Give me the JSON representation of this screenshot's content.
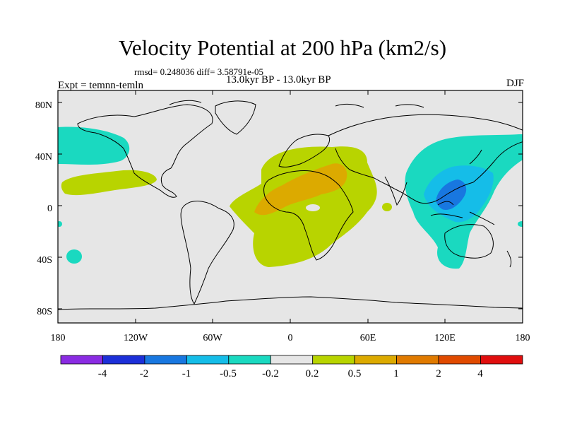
{
  "title": "Velocity Potential at 200 hPa (km2/s)",
  "stats": "rmsd= 0.248036 diff= 3.58791e-05",
  "period": "13.0kyr BP - 13.0kyr BP",
  "experiment": "Expt = temnn-temln",
  "season": "DJF",
  "x_ticks": [
    "180",
    "120W",
    "60W",
    "0",
    "60E",
    "120E",
    "180"
  ],
  "y_ticks": [
    "80N",
    "40N",
    "0",
    "40S",
    "80S"
  ],
  "colorbar": {
    "colors": [
      "#8a2be2",
      "#1c2fd8",
      "#1877e0",
      "#15bde8",
      "#1ad9c0",
      "#e6e6e6",
      "#b8d400",
      "#dcaa00",
      "#e07a00",
      "#e04a00",
      "#e00e0e"
    ],
    "labels": [
      "-4",
      "-2",
      "-1",
      "-0.5",
      "-0.2",
      "0.2",
      "0.5",
      "1",
      "2",
      "4"
    ]
  },
  "colors": {
    "ocean": "#e6e6e6",
    "neg_weak": "#1ad9c0",
    "neg_mid": "#15bde8",
    "neg_strong": "#1877e0",
    "pos_weak": "#b8d400",
    "pos_mid": "#dcaa00"
  }
}
